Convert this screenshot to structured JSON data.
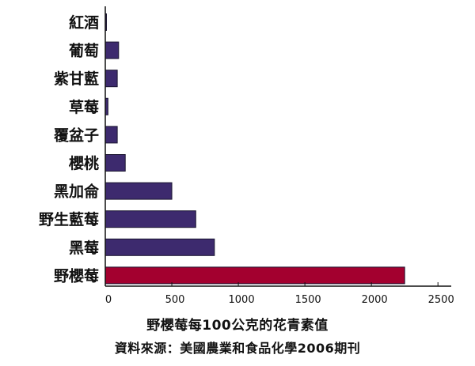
{
  "chart_data": {
    "type": "bar",
    "orientation": "horizontal",
    "categories": [
      "紅酒",
      "葡萄",
      "紫甘藍",
      "草莓",
      "覆盆子",
      "櫻桃",
      "黑加侖",
      "野生藍莓",
      "黑莓",
      "野櫻莓"
    ],
    "values": [
      5,
      100,
      90,
      20,
      90,
      150,
      500,
      680,
      820,
      2250
    ],
    "x_ticks": [
      0,
      500,
      1000,
      1500,
      2000,
      2500
    ],
    "x_tick_labels": [
      "0",
      "500",
      "1000",
      "1500",
      "2000",
      "2500"
    ],
    "xlim": [
      0,
      2600
    ],
    "grid": false,
    "legend": "none",
    "colors": {
      "default_bar": "#3d2a6e",
      "highlight_bar": "#a3002f",
      "bar_outline": "#1a1530",
      "axis": "#111111"
    },
    "highlight_category": "野櫻莓",
    "title": "野櫻莓每100公克的花青素值",
    "source": "資料來源：美國農業和食品化學2006期刊"
  }
}
